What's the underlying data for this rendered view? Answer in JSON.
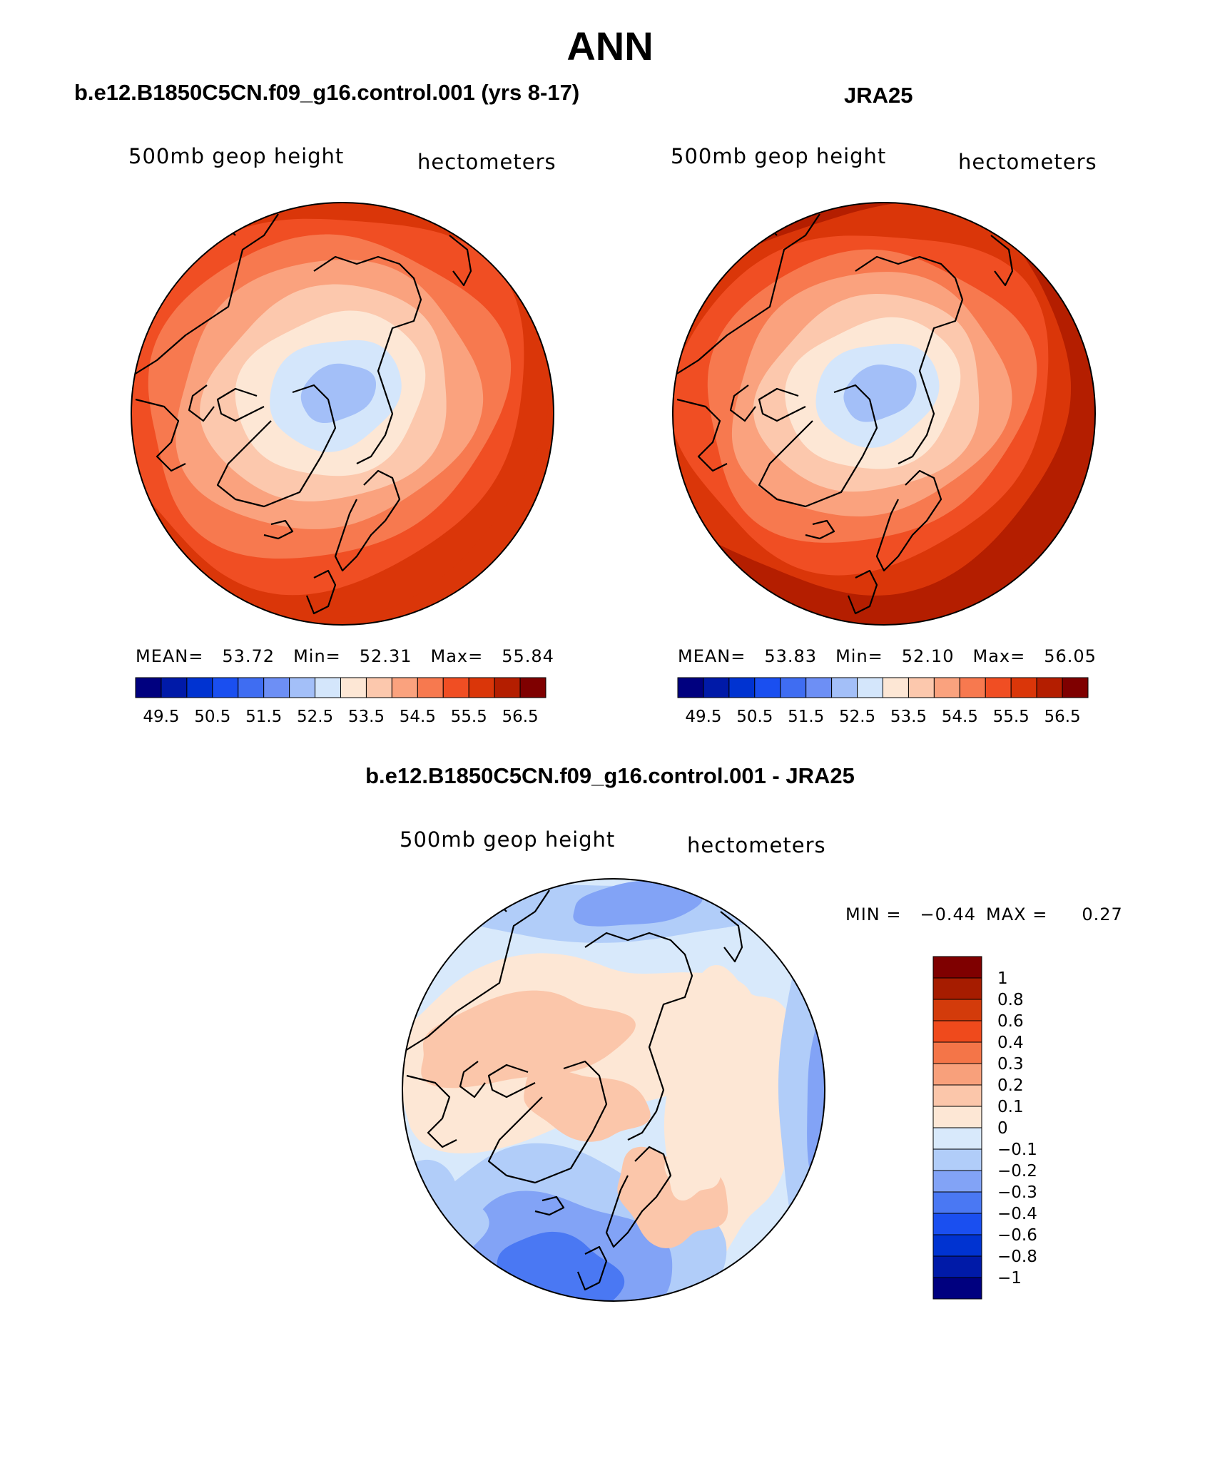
{
  "figure": {
    "title": "ANN",
    "left_title": "b.e12.B1850C5CN.f09_g16.control.001 (yrs 8-17)",
    "right_title": "JRA25",
    "diff_title": "b.e12.B1850C5CN.f09_g16.control.001 - JRA25"
  },
  "colors": {
    "main_palette": [
      "#00007f",
      "#001aa8",
      "#0033d1",
      "#1a4ff0",
      "#3f6df2",
      "#6d8ff5",
      "#a3bff8",
      "#d4e6fb",
      "#fde7d5",
      "#fcc8ad",
      "#faa27e",
      "#f7794f",
      "#f04e23",
      "#da3609",
      "#b41e00",
      "#7f0000"
    ],
    "diff_palette": [
      "#00007f",
      "#001aa8",
      "#0033d1",
      "#1a4ff0",
      "#4a78f3",
      "#82a3f6",
      "#b1cdf9",
      "#d8e9fb",
      "#fde7d5",
      "#fbc6aa",
      "#f8a07b",
      "#f47548",
      "#ef4a1c",
      "#d33b0b",
      "#a61c00",
      "#7f0000"
    ],
    "coast": "#000000"
  },
  "chart_data": [
    {
      "type": "map",
      "projection": "north-polar-stereographic",
      "variable_label": "500mb geop height",
      "units": "hectometers",
      "stats": {
        "mean_label": "MEAN=",
        "mean": "53.72",
        "min_label": "Min=",
        "min": "52.31",
        "max_label": "Max=",
        "max": "55.84"
      },
      "levels": [
        49.5,
        50,
        50.5,
        51,
        51.5,
        52,
        52.5,
        53,
        53.5,
        54,
        54.5,
        55,
        55.5,
        56,
        56.5
      ],
      "colorbar_labels": [
        "49.5",
        "50.5",
        "51.5",
        "52.5",
        "53.5",
        "54.5",
        "55.5",
        "56.5"
      ],
      "center_value": 52.31,
      "edge_value": 55.84
    },
    {
      "type": "map",
      "projection": "north-polar-stereographic",
      "variable_label": "500mb geop height",
      "units": "hectometers",
      "stats": {
        "mean_label": "MEAN=",
        "mean": "53.83",
        "min_label": "Min=",
        "min": "52.10",
        "max_label": "Max=",
        "max": "56.05"
      },
      "levels": [
        49.5,
        50,
        50.5,
        51,
        51.5,
        52,
        52.5,
        53,
        53.5,
        54,
        54.5,
        55,
        55.5,
        56,
        56.5
      ],
      "colorbar_labels": [
        "49.5",
        "50.5",
        "51.5",
        "52.5",
        "53.5",
        "54.5",
        "55.5",
        "56.5"
      ],
      "center_value": 52.1,
      "edge_value": 56.05
    },
    {
      "type": "map",
      "projection": "north-polar-stereographic",
      "variable_label": "500mb geop height",
      "units": "hectometers",
      "stats": {
        "min_label": "MIN =",
        "min": "−0.44",
        "max_label": "MAX =",
        "max": "0.27"
      },
      "levels": [
        -1,
        -0.8,
        -0.6,
        -0.4,
        -0.3,
        -0.2,
        -0.1,
        0,
        0.1,
        0.2,
        0.3,
        0.4,
        0.6,
        0.8,
        1
      ],
      "colorbar_labels": [
        "1",
        "0.8",
        "0.6",
        "0.4",
        "0.3",
        "0.2",
        "0.1",
        "0",
        "−0.1",
        "−0.2",
        "−0.3",
        "−0.4",
        "−0.6",
        "−0.8",
        "−1"
      ]
    }
  ]
}
